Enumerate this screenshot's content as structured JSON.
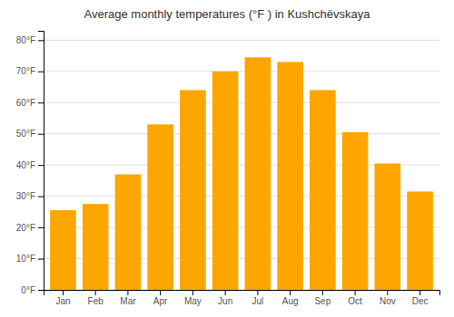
{
  "chart_data": {
    "type": "bar",
    "title": "Average monthly temperatures (°F ) in Kushchëvskaya",
    "categories": [
      "Jan",
      "Feb",
      "Mar",
      "Apr",
      "May",
      "Jun",
      "Jul",
      "Aug",
      "Sep",
      "Oct",
      "Nov",
      "Dec"
    ],
    "values": [
      25.5,
      27.5,
      37.0,
      53.0,
      64.0,
      70.0,
      74.5,
      73.0,
      64.0,
      50.5,
      40.5,
      31.5
    ],
    "color": "#FFA500",
    "ylim": [
      0,
      83
    ],
    "yticks": [
      {
        "value": 0,
        "label": "0°F"
      },
      {
        "value": 10,
        "label": "10°F"
      },
      {
        "value": 20,
        "label": "20°F"
      },
      {
        "value": 30,
        "label": "30°F"
      },
      {
        "value": 40,
        "label": "40°F"
      },
      {
        "value": 50,
        "label": "50°F"
      },
      {
        "value": 60,
        "label": "60°F"
      },
      {
        "value": 70,
        "label": "70°F"
      },
      {
        "value": 80,
        "label": "80°F"
      }
    ],
    "grid": true
  }
}
